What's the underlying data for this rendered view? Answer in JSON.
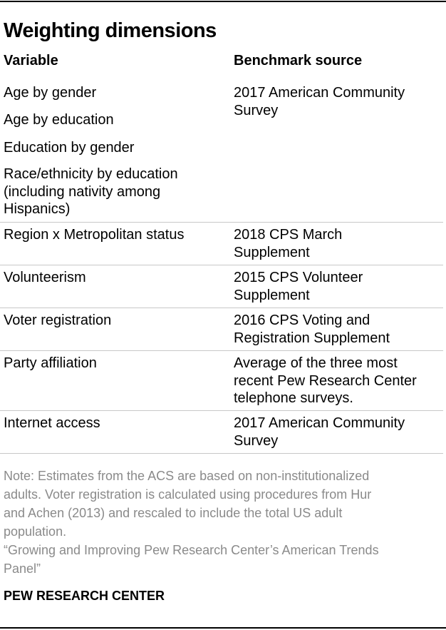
{
  "title": "Weighting dimensions",
  "headers": {
    "variable": "Variable",
    "source": "Benchmark source"
  },
  "rows": [
    {
      "variables": [
        "Age by gender",
        "Age by education",
        "Education by gender",
        "Race/ethnicity by education",
        "(including nativity among",
        "Hispanics)"
      ],
      "source": [
        "2017 American Community",
        "Survey"
      ]
    },
    {
      "variables": [
        "Region x Metropolitan status"
      ],
      "source": [
        "2018 CPS March",
        "Supplement"
      ]
    },
    {
      "variables": [
        "Volunteerism"
      ],
      "source": [
        "2015 CPS Volunteer",
        "Supplement"
      ]
    },
    {
      "variables": [
        "Voter registration"
      ],
      "source": [
        "2016 CPS Voting and",
        "Registration Supplement"
      ]
    },
    {
      "variables": [
        "Party affiliation"
      ],
      "source": [
        "Average of the three most",
        "recent Pew Research Center",
        "telephone surveys."
      ]
    },
    {
      "variables": [
        "Internet access"
      ],
      "source": [
        "2017 American Community",
        "Survey"
      ]
    }
  ],
  "note": [
    "Note: Estimates from the ACS are based on non-institutionalized",
    "adults. Voter registration is calculated using procedures from Hur",
    "and Achen (2013) and rescaled to include the total US adult",
    "population."
  ],
  "source_citation": [
    "“Growing and Improving Pew Research Center’s American Trends",
    "Panel”"
  ],
  "brand": "PEW RESEARCH CENTER"
}
